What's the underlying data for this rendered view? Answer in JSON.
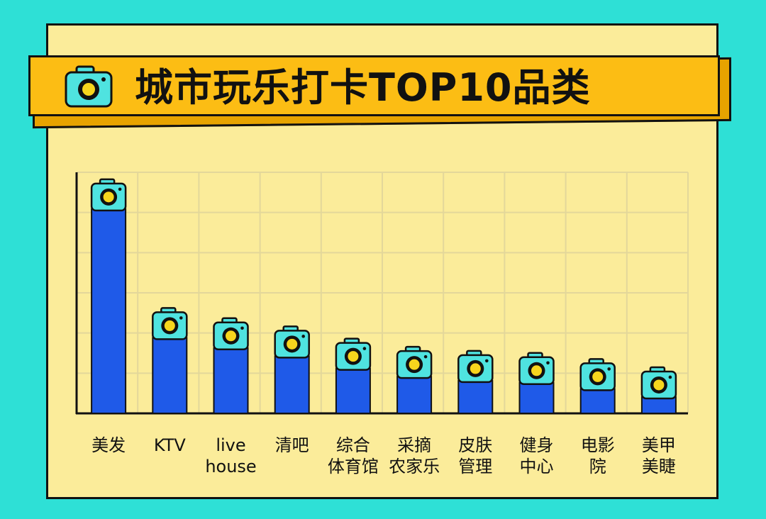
{
  "title": "城市玩乐打卡TOP10品类",
  "colors": {
    "background": "#2ee0d6",
    "card": "#fbec9a",
    "banner": "#fcbd14",
    "bar": "#1f5ae8",
    "camera": "#4fe3e0",
    "lens": "#f7d51d"
  },
  "icons": {
    "title": "camera-icon",
    "bar_top": "camera-icon"
  },
  "chart_data": {
    "type": "bar",
    "title": "城市玩乐打卡TOP10品类",
    "categories": [
      "美发",
      "KTV",
      "live\nhouse",
      "清吧",
      "综合\n体育馆",
      "采摘\n农家乐",
      "皮肤\n管理",
      "健身\n中心",
      "电影\n院",
      "美甲\n美睫"
    ],
    "values": [
      100,
      37,
      32,
      28,
      22,
      18,
      16,
      15,
      12,
      8
    ],
    "ylim": [
      0,
      118
    ],
    "grid": true,
    "legend": "none"
  }
}
